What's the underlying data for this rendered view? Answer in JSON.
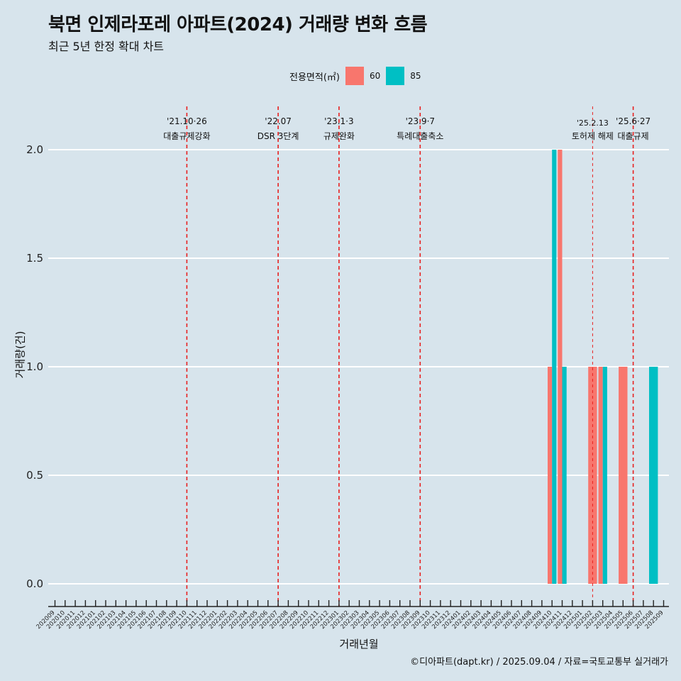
{
  "title": "북면 인제라포레 아파트(2024) 거래량 변화 흐름",
  "subtitle": "최근 5년 한정 확대 차트",
  "caption": "©디아파트(dapt.kr) / 2025.09.04 / 자료=국토교통부 실거래가",
  "legend": {
    "title": "전용면적(㎡)",
    "items": [
      {
        "label": "60",
        "color": "#f8766d"
      },
      {
        "label": "85",
        "color": "#00bfc4"
      }
    ]
  },
  "chart_data": {
    "type": "bar",
    "xlabel": "거래년월",
    "ylabel": "거래량(건)",
    "ylim": [
      0,
      2
    ],
    "yticks": [
      "0.0",
      "0.5",
      "1.0",
      "1.5",
      "2.0"
    ],
    "categories": [
      "202009",
      "202010",
      "202011",
      "202012",
      "202101",
      "202102",
      "202103",
      "202104",
      "202105",
      "202106",
      "202107",
      "202108",
      "202109",
      "202110",
      "202111",
      "202112",
      "202201",
      "202202",
      "202203",
      "202204",
      "202205",
      "202206",
      "202207",
      "202208",
      "202209",
      "202210",
      "202211",
      "202212",
      "202301",
      "202302",
      "202303",
      "202304",
      "202305",
      "202306",
      "202307",
      "202308",
      "202309",
      "202310",
      "202311",
      "202312",
      "202401",
      "202402",
      "202403",
      "202404",
      "202405",
      "202406",
      "202407",
      "202408",
      "202409",
      "202410",
      "202411",
      "202412",
      "202501",
      "202502",
      "202503",
      "202504",
      "202505",
      "202506",
      "202507",
      "202508",
      "202509"
    ],
    "bars": [
      {
        "month": "202410",
        "series": "60",
        "value": 1
      },
      {
        "month": "202410",
        "series": "85",
        "value": 2
      },
      {
        "month": "202411",
        "series": "60",
        "value": 2
      },
      {
        "month": "202411",
        "series": "85",
        "value": 1
      },
      {
        "month": "202502",
        "series": "60",
        "value": 1
      },
      {
        "month": "202503",
        "series": "60",
        "value": 1
      },
      {
        "month": "202503",
        "series": "85",
        "value": 1
      },
      {
        "month": "202505",
        "series": "60",
        "value": 1
      },
      {
        "month": "202508",
        "series": "85",
        "value": 1
      }
    ],
    "annotations": [
      {
        "date": "'21.10·26",
        "label": "대출규제강화",
        "month": "202110",
        "style": "major"
      },
      {
        "date": "'22.07",
        "label": "DSR 3단계",
        "month": "202207",
        "style": "major"
      },
      {
        "date": "'23.1·3",
        "label": "규제완화",
        "month": "202301",
        "style": "major"
      },
      {
        "date": "'23.9·7",
        "label": "특례대출축소",
        "month": "202309",
        "style": "major"
      },
      {
        "date": "'25.2.13",
        "label": "토허제 해제",
        "month": "202502",
        "style": "minor"
      },
      {
        "date": "'25.6·27",
        "label": "대출규제",
        "month": "202506",
        "style": "major"
      }
    ],
    "grid": true,
    "legend_position": "top"
  }
}
